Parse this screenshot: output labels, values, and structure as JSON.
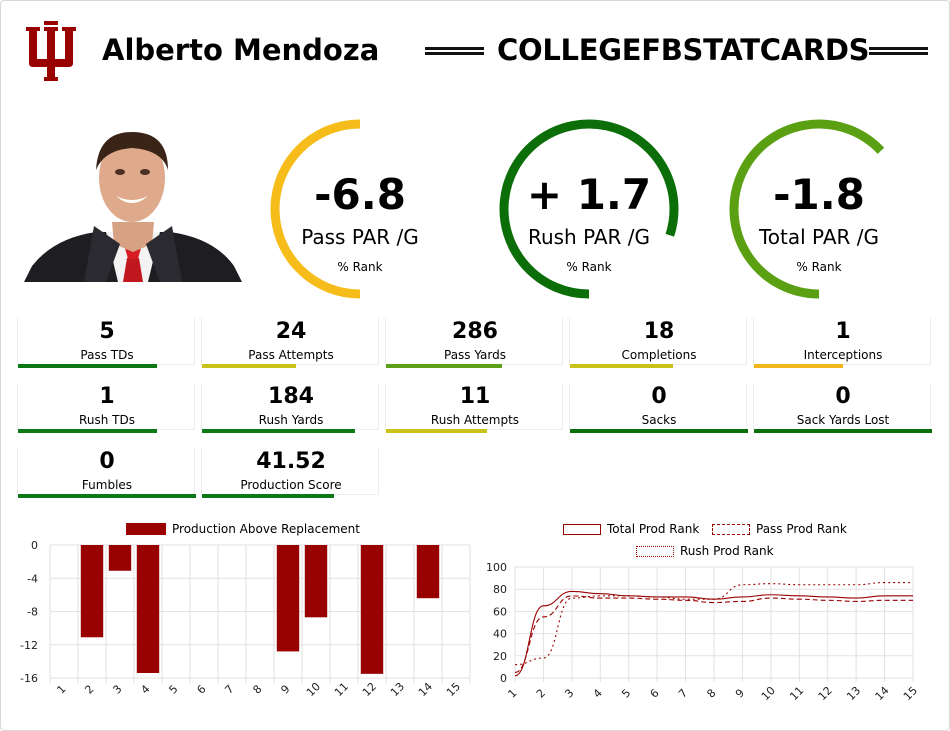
{
  "header": {
    "player_name": "Alberto Mendoza",
    "site_name": "COLLEGEFBSTATCARDS",
    "logo_icon": "iu-trident-logo",
    "brand_color": "#990000"
  },
  "gauges": [
    {
      "value": "-6.8",
      "label": "Pass PAR /G",
      "rank_label": "% Rank",
      "rank_fraction": 0.5,
      "color": "#f5bc1a"
    },
    {
      "value": "+ 1.7",
      "label": "Rush PAR /G",
      "rank_label": "% Rank",
      "rank_fraction": 0.8,
      "color": "#0b6e08"
    },
    {
      "value": "-1.8",
      "label": "Total PAR /G",
      "rank_label": "% Rank",
      "rank_fraction": 0.63,
      "color": "#5aa012"
    }
  ],
  "stats": [
    {
      "value": "5",
      "label": "Pass TDs",
      "fraction": 0.78,
      "color": "#0b7a16"
    },
    {
      "value": "24",
      "label": "Pass Attempts",
      "fraction": 0.53,
      "color": "#c9c21a"
    },
    {
      "value": "286",
      "label": "Pass Yards",
      "fraction": 0.65,
      "color": "#5ea119"
    },
    {
      "value": "18",
      "label": "Completions",
      "fraction": 0.58,
      "color": "#c9c21a"
    },
    {
      "value": "1",
      "label": "Interceptions",
      "fraction": 0.5,
      "color": "#f2b61d"
    },
    {
      "value": "1",
      "label": "Rush TDs",
      "fraction": 0.78,
      "color": "#0b7a16"
    },
    {
      "value": "184",
      "label": "Rush Yards",
      "fraction": 0.86,
      "color": "#0b7a16"
    },
    {
      "value": "11",
      "label": "Rush Attempts",
      "fraction": 0.57,
      "color": "#c9c21a"
    },
    {
      "value": "0",
      "label": "Sacks",
      "fraction": 1.0,
      "color": "#0b6e08"
    },
    {
      "value": "0",
      "label": "Sack Yards Lost",
      "fraction": 1.0,
      "color": "#0b6e08"
    },
    {
      "value": "0",
      "label": "Fumbles",
      "fraction": 1.0,
      "color": "#0b7a16"
    },
    {
      "value": "41.52",
      "label": "Production Score",
      "fraction": 0.74,
      "color": "#0b7a16"
    }
  ],
  "chart_data": [
    {
      "type": "bar",
      "categories": [
        "1",
        "2",
        "3",
        "4",
        "5",
        "6",
        "7",
        "8",
        "9",
        "10",
        "11",
        "12",
        "13",
        "14",
        "15"
      ],
      "series": [
        {
          "name": "Production Above Replacement",
          "values": [
            0,
            -11.1,
            -3.1,
            -15.4,
            0,
            0,
            0,
            0,
            -12.8,
            -8.7,
            0,
            -15.5,
            0,
            -6.4,
            0
          ],
          "color": "#990000"
        }
      ],
      "ylim": [
        -16,
        0
      ],
      "yticks": [
        0,
        -4,
        -8,
        -12,
        -16
      ],
      "grid": true,
      "legend": "top"
    },
    {
      "type": "line",
      "x": [
        1,
        2,
        3,
        4,
        5,
        6,
        7,
        8,
        9,
        10,
        11,
        12,
        13,
        14,
        15
      ],
      "series": [
        {
          "name": "Total Prod Rank",
          "style": "solid",
          "values": [
            2,
            65,
            78,
            76,
            74,
            73,
            73,
            71,
            73,
            75,
            74,
            73,
            72,
            74,
            74
          ]
        },
        {
          "name": "Pass Prod Rank",
          "style": "dashed",
          "values": [
            5,
            55,
            74,
            72,
            72,
            71,
            70,
            68,
            69,
            72,
            71,
            70,
            69,
            70,
            70
          ]
        },
        {
          "name": "Rush Prod Rank",
          "style": "dotted",
          "values": [
            12,
            18,
            72,
            74,
            74,
            73,
            71,
            71,
            84,
            85,
            84,
            84,
            84,
            86,
            86
          ]
        }
      ],
      "ylim": [
        0,
        100
      ],
      "yticks": [
        0,
        20,
        40,
        60,
        80,
        100
      ],
      "color": "#990000",
      "grid": true,
      "legend": "top"
    }
  ]
}
